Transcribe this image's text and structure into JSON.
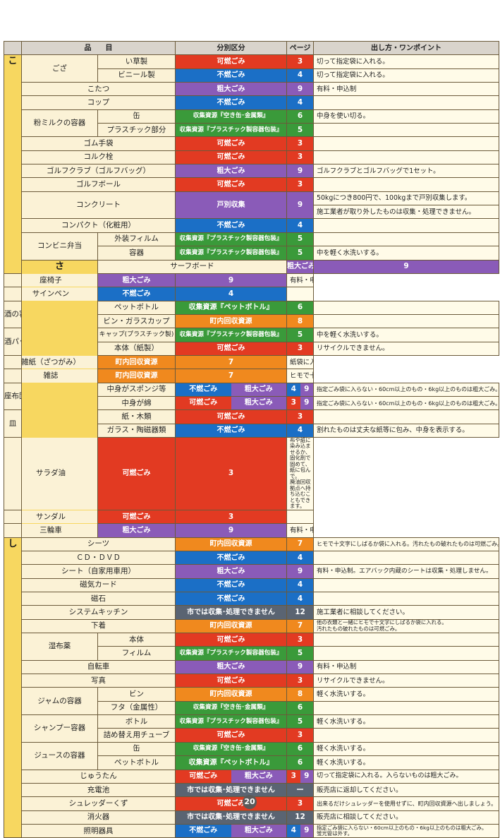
{
  "headers": {
    "item": "品　　目",
    "category": "分別区分",
    "page": "ページ",
    "note": "出し方・ワンポイント"
  },
  "sections": {
    "ko": "こ",
    "sa": "さ",
    "shi": "し"
  },
  "categories": {
    "kanen": "可燃ごみ",
    "funen": "不燃ごみ",
    "sodai": "粗大ごみ",
    "kan": "収集資源『空き缶･金属類』",
    "pura": "収集資源『プラスチック製容器包装』",
    "pet": "収集資源『ペットボトル』",
    "kobetsu": "戸別収集",
    "chonai": "町内回収資源",
    "shi": "市では収集･処理できません"
  },
  "rows": {
    "goza": "ござ",
    "igusa": "い草製",
    "vinyl": "ビニール製",
    "kotatsu": "こたつ",
    "cup": "コップ",
    "milk": "粉ミルクの容器",
    "milk_kan": "缶",
    "milk_pura": "プラスチック部分",
    "gomutebukuro": "ゴム手袋",
    "korukusen": "コルク栓",
    "golfclub": "ゴルフクラブ（ゴルフバッグ）",
    "golfball": "ゴルフボール",
    "concrete": "コンクリート",
    "compact": "コンパクト（化粧用）",
    "conbini": "コンビニ弁当",
    "conbini_film": "外装フィルム",
    "conbini_yoki": "容器",
    "surfboard": "サーフボード",
    "zaisu": "座椅子",
    "signpen": "サインペン",
    "sake": "酒の容器",
    "sake_pet": "ペットボトル",
    "sake_bin": "ビン・ガラスカップ",
    "sakepack": "酒パック",
    "sakepack_cap": "キャップ(プラスチック製)",
    "sakepack_body": "本体（紙製）",
    "zasshi_zatsugami": "雑紙（ざつがみ）",
    "zasshi": "雑誌",
    "zabuton": "座布団",
    "zabuton_sponge": "中身がスポンジ等",
    "zabuton_wata": "中身が綿",
    "sara": "皿",
    "sara_kami": "紙・木類",
    "sara_glass": "ガラス・陶磁器類",
    "saladoil": "サラダ油",
    "sandal": "サンダル",
    "sanrinsha": "三輪車",
    "sheets": "シーツ",
    "cddvd": "ＣＤ・ＤＶＤ",
    "seat": "シート（自家用車用）",
    "magcard": "磁気カード",
    "jishaku": "磁石",
    "syskitchen": "システムキッチン",
    "shitagi": "下着",
    "shippu": "湿布薬",
    "shippu_hontai": "本体",
    "shippu_film": "フィルム",
    "jitensha": "自転車",
    "shashin": "写真",
    "jam": "ジャムの容器",
    "jam_bin": "ビン",
    "jam_futa": "フタ（金属性）",
    "shampoo": "シャンプー容器",
    "shampoo_bottle": "ボトル",
    "shampoo_refill": "詰め替え用チューブ",
    "juice": "ジュースの容器",
    "juice_kan": "缶",
    "juice_pet": "ペットボトル",
    "jutan": "じゅうたん",
    "denchi": "充電池",
    "shredder": "シュレッダーくず",
    "shokaki": "消火器",
    "shomei": "照明器具"
  },
  "pages": {
    "p3": "3",
    "p4": "4",
    "p5": "5",
    "p6": "6",
    "p7": "7",
    "p8": "8",
    "p9": "9",
    "p12": "12",
    "dash": "ー"
  },
  "notes": {
    "kitte": "切って指定袋に入れる。",
    "yuryo": "有料・申込制",
    "nakami": "中身を使い切る。",
    "golf": "ゴルフクラブとゴルフバッグで1セット。",
    "concrete1": "50kgにつき800円で、100kgまで戸別収集します。",
    "concrete2": "施工業者が取り外したものは収集・処理できません。",
    "karuku": "中を軽く水洗いする。",
    "recycle_no": "リサイクルできません。",
    "zatsugami": "紙袋に入れたり、紙で包んだ後、ヒモで十文字にしばる。",
    "himo": "ヒモで十文字にしばる。",
    "zabuton_sponge": "指定ごみ袋に入らない・60cm以上のもの・6kg以上のものは粗大ごみ。",
    "zabuton_wata": "指定ごみ袋に入らない・60cm以上のもの・6kg以上のものは粗大ごみ。",
    "waremono": "割れたものは丈夫な紙等に包み、中身を表示する。",
    "oil1": "布や紙に染み込ませるか、固化剤で固めて、紙に包んで。",
    "oil2": "廃油回収拠点へ持ち込むこともできます。",
    "sheets": "ヒモで十文字にしばるか袋に入れる。汚れたもの破れたものは可燃ごみ。",
    "seat": "有料・申込制。エアバック内蔵のシートは収集・処理しません。",
    "sekosha": "施工業者に相談してください。",
    "shitagi1": "他の衣類と一緒にヒモで十文字にしばるか袋に入れる。",
    "shitagi2": "汚れたもの破れたものは可燃ごみ。",
    "mizuarai": "軽く水洗いする。",
    "jutan": "切って指定袋に入れる。入らないものは粗大ごみ。",
    "hanbaiten": "販売店に返却してください。",
    "shredder": "出来るだけシュレッダーを使用せずに、町内回収資源へ出しましょう。",
    "hanbaiten_sodan": "販売店に相談してください。",
    "shomei1": "指定ごみ袋に入らない・60cm以上のもの・6kg以上のものは粗大ごみ。",
    "shomei2": "蛍光管は外す。"
  },
  "footer": {
    "page_number": "20"
  },
  "colors": {
    "kanen": "#e23a22",
    "funen": "#1b6fc6",
    "sodai": "#8a5bb8",
    "shigen": "#3a9a3a",
    "chonai": "#f0891e",
    "shi": "#5a6472",
    "section": "#f7d760",
    "item_bg": "#fbf2d6"
  }
}
